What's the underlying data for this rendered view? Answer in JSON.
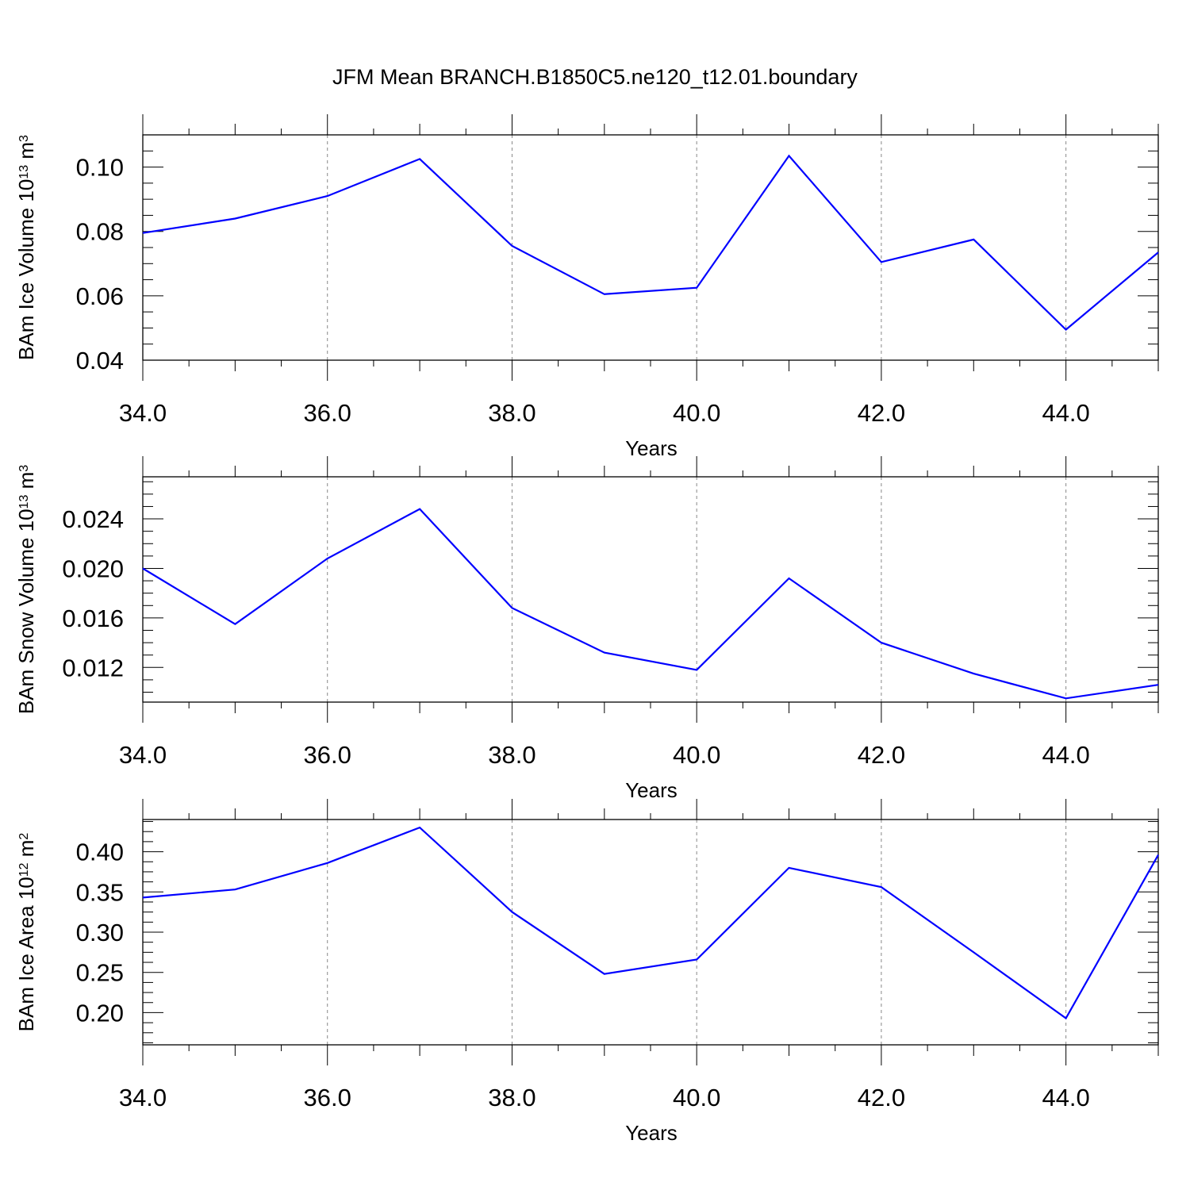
{
  "title": "JFM Mean BRANCH.B1850C5.ne120_t12.01.boundary",
  "colors": {
    "line": "#0000ff",
    "grid": "#888888",
    "axis": "#000000"
  },
  "chart_data": [
    {
      "type": "line",
      "xlabel": "Years",
      "ylabel": {
        "text": "BAm Ice Volume 10",
        "sup": "13",
        "unit": " m",
        "unit_sup": "3"
      },
      "xlim": [
        34,
        45
      ],
      "ylim": [
        0.04,
        0.11
      ],
      "xticks": [
        34,
        36,
        38,
        40,
        42,
        44
      ],
      "xtick_labels": [
        "34.0",
        "36.0",
        "38.0",
        "40.0",
        "42.0",
        "44.0"
      ],
      "yticks": [
        0.04,
        0.06,
        0.08,
        0.1
      ],
      "ytick_labels": [
        "0.04",
        "0.06",
        "0.08",
        "0.10"
      ],
      "grid": "vertical dashed at major x ticks",
      "x": [
        34,
        35,
        36,
        37,
        38,
        39,
        40,
        41,
        42,
        43,
        44,
        45
      ],
      "values": [
        0.0795,
        0.084,
        0.091,
        0.1025,
        0.0755,
        0.0605,
        0.0625,
        0.1035,
        0.0705,
        0.0775,
        0.0495,
        0.0735
      ]
    },
    {
      "type": "line",
      "xlabel": "Years",
      "ylabel": {
        "text": "BAm Snow Volume 10",
        "sup": "13",
        "unit": " m",
        "unit_sup": "3"
      },
      "xlim": [
        34,
        45
      ],
      "ylim": [
        0.0092,
        0.0274
      ],
      "xticks": [
        34,
        36,
        38,
        40,
        42,
        44
      ],
      "xtick_labels": [
        "34.0",
        "36.0",
        "38.0",
        "40.0",
        "42.0",
        "44.0"
      ],
      "yticks": [
        0.012,
        0.016,
        0.02,
        0.024
      ],
      "ytick_labels": [
        "0.012",
        "0.016",
        "0.020",
        "0.024"
      ],
      "grid": "vertical dashed at major x ticks",
      "x": [
        34,
        35,
        36,
        37,
        38,
        39,
        40,
        41,
        42,
        43,
        44,
        45
      ],
      "values": [
        0.02,
        0.0155,
        0.0208,
        0.0248,
        0.0168,
        0.0132,
        0.0118,
        0.0192,
        0.014,
        0.0115,
        0.0095,
        0.0106
      ]
    },
    {
      "type": "line",
      "xlabel": "Years",
      "ylabel": {
        "text": "BAm Ice Area 10",
        "sup": "12",
        "unit": " m",
        "unit_sup": "2"
      },
      "xlim": [
        34,
        45
      ],
      "ylim": [
        0.16,
        0.44
      ],
      "xticks": [
        34,
        36,
        38,
        40,
        42,
        44
      ],
      "xtick_labels": [
        "34.0",
        "36.0",
        "38.0",
        "40.0",
        "42.0",
        "44.0"
      ],
      "yticks": [
        0.2,
        0.25,
        0.3,
        0.35,
        0.4
      ],
      "ytick_labels": [
        "0.20",
        "0.25",
        "0.30",
        "0.35",
        "0.40"
      ],
      "grid": "vertical dashed at major x ticks",
      "x": [
        34,
        35,
        36,
        37,
        38,
        39,
        40,
        41,
        42,
        43,
        44,
        45
      ],
      "values": [
        0.343,
        0.353,
        0.386,
        0.43,
        0.325,
        0.248,
        0.266,
        0.38,
        0.356,
        0.275,
        0.193,
        0.396
      ]
    }
  ]
}
